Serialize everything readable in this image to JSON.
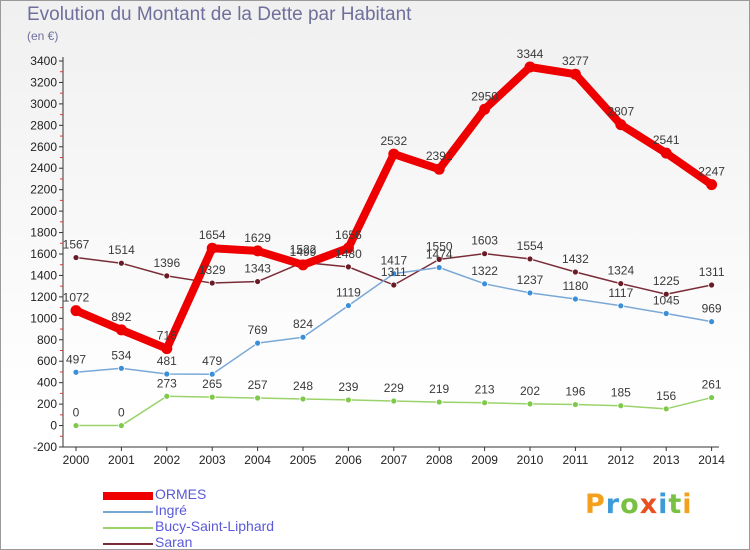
{
  "title": "Evolution du Montant de la Dette par Habitant",
  "unit": "(en €)",
  "logo": {
    "text": "Proxiti",
    "colors": [
      "#f3a11c",
      "#3d9bd8",
      "#79c143",
      "#e8511f",
      "#3d9bd8",
      "#79c143",
      "#f3a11c"
    ]
  },
  "chart_data": {
    "type": "line",
    "x": [
      "2000",
      "2001",
      "2002",
      "2003",
      "2004",
      "2005",
      "2006",
      "2007",
      "2008",
      "2009",
      "2010",
      "2011",
      "2012",
      "2013",
      "2014"
    ],
    "ylim": [
      -200,
      3400
    ],
    "yticks": [
      -200,
      0,
      200,
      400,
      600,
      800,
      1000,
      1200,
      1400,
      1600,
      1800,
      2000,
      2200,
      2400,
      2600,
      2800,
      3000,
      3200,
      3400
    ],
    "grid": false,
    "legend_position": "bottom-left",
    "series": [
      {
        "name": "ORMES",
        "color": "#ee0000",
        "marker": "#ee0000",
        "width": 8,
        "values": [
          1072,
          892,
          718,
          1654,
          1629,
          1499,
          1656,
          2532,
          2391,
          2950,
          3344,
          3277,
          2807,
          2541,
          2247
        ],
        "labels": [
          "1072",
          "892",
          "718",
          "1654",
          "1629",
          "1499",
          "1656",
          "2532",
          "2391",
          "2950",
          "3344",
          "3277",
          "2807",
          "2541",
          "2247"
        ]
      },
      {
        "name": "Ingré",
        "color": "#7aa8d6",
        "marker": "#3a8fd8",
        "width": 1.5,
        "values": [
          497,
          534,
          481,
          479,
          769,
          824,
          1119,
          1417,
          1474,
          1322,
          1237,
          1180,
          1117,
          1045,
          969
        ],
        "labels": [
          "497",
          "534",
          "481",
          "479",
          "769",
          "824",
          "1119",
          "1417",
          "1474",
          "1322",
          "1237",
          "1180",
          "1117",
          "1045",
          "969"
        ]
      },
      {
        "name": "Bucy-Saint-Liphard",
        "color": "#9ad36a",
        "marker": "#7ec84a",
        "width": 1.5,
        "values": [
          0,
          0,
          273,
          265,
          257,
          248,
          239,
          229,
          219,
          213,
          202,
          196,
          185,
          156,
          261
        ],
        "labels": [
          "0",
          "0",
          "273",
          "265",
          "257",
          "248",
          "239",
          "229",
          "219",
          "213",
          "202",
          "196",
          "185",
          "156",
          "261"
        ]
      },
      {
        "name": "Saran",
        "color": "#7a2c38",
        "marker": "#6a1c26",
        "width": 1.5,
        "values": [
          1567,
          1514,
          1396,
          1329,
          1343,
          1522,
          1480,
          1311,
          1550,
          1603,
          1554,
          1432,
          1324,
          1225,
          1311
        ],
        "labels": [
          "1567",
          "1514",
          "1396",
          "1329",
          "1343",
          "1522",
          "1480",
          "1311",
          "1550",
          "1603",
          "1554",
          "1432",
          "1324",
          "1225",
          "1311"
        ]
      }
    ]
  }
}
